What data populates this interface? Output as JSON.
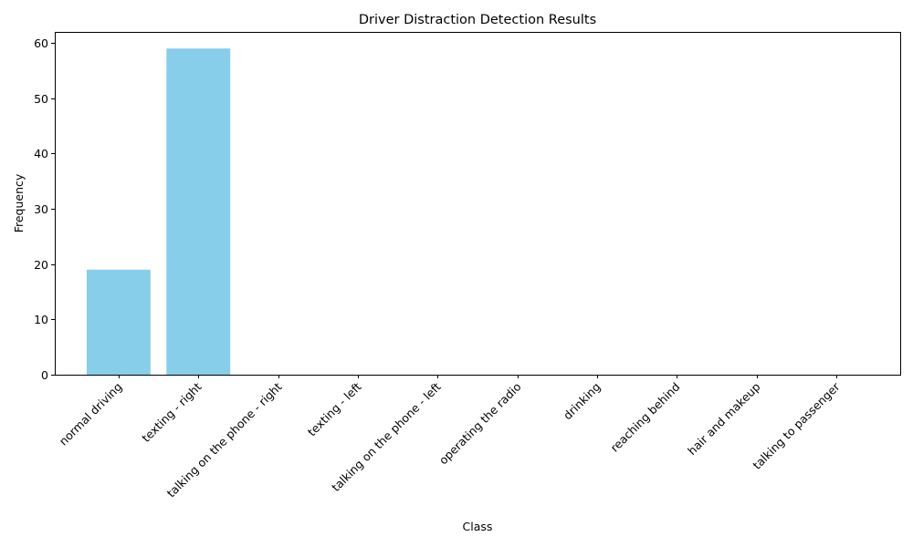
{
  "chart_data": {
    "type": "bar",
    "title": "Driver Distraction Detection Results",
    "xlabel": "Class",
    "ylabel": "Frequency",
    "categories": [
      "normal driving",
      "texting - right",
      "talking on the phone - right",
      "texting - left",
      "talking on the phone - left",
      "operating the radio",
      "drinking",
      "reaching behind",
      "hair and makeup",
      "talking to passenger"
    ],
    "values": [
      19,
      59,
      0,
      0,
      0,
      0,
      0,
      0,
      0,
      0
    ],
    "ylim": [
      0,
      62
    ],
    "yticks": [
      0,
      10,
      20,
      30,
      40,
      50,
      60
    ],
    "grid": false,
    "bar_color": "#87ceeb"
  }
}
